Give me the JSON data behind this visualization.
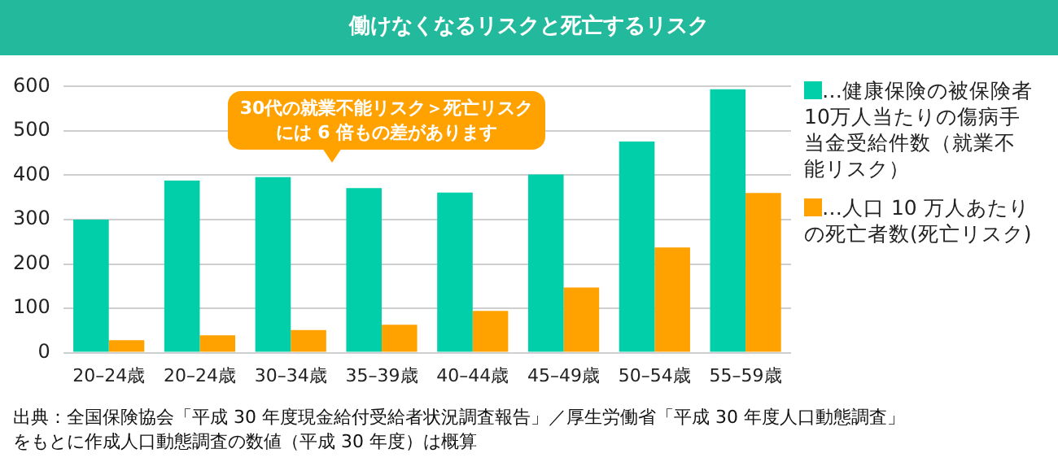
{
  "chart_data": {
    "type": "bar",
    "title": "働けなくなるリスクと死亡するリスク",
    "categories": [
      "20–24歳",
      "20–24歳",
      "30–34歳",
      "35–39歳",
      "40–44歳",
      "45–49歳",
      "50–54歳",
      "55–59歳"
    ],
    "series": [
      {
        "name": "…健康保険の被保険者10万人当たりの傷病手当金受給件数（就業不能リスク）",
        "color": "#00cfaa",
        "values": [
          300,
          388,
          396,
          371,
          361,
          402,
          476,
          594
        ]
      },
      {
        "name": "…人口 10 万人あたりの死亡者数(死亡リスク)",
        "color": "#ffa200",
        "values": [
          28,
          39,
          51,
          63,
          94,
          147,
          237,
          360
        ]
      }
    ],
    "ylim": [
      0,
      600
    ],
    "yticks": [
      0,
      100,
      200,
      300,
      400,
      500,
      600
    ],
    "grid": "y",
    "legend": "right",
    "annotations": [
      "30代の就業不能リスク＞死亡リスクには 6 倍もの差があります",
      "出典：全国保険協会「平成 30 年度現金給付受給者状況調査報告」／厚生労働省「平成 30 年度人口動態調査」をもとに作成人口動態調査の数値（平成 30 年度）は概算"
    ]
  }
}
